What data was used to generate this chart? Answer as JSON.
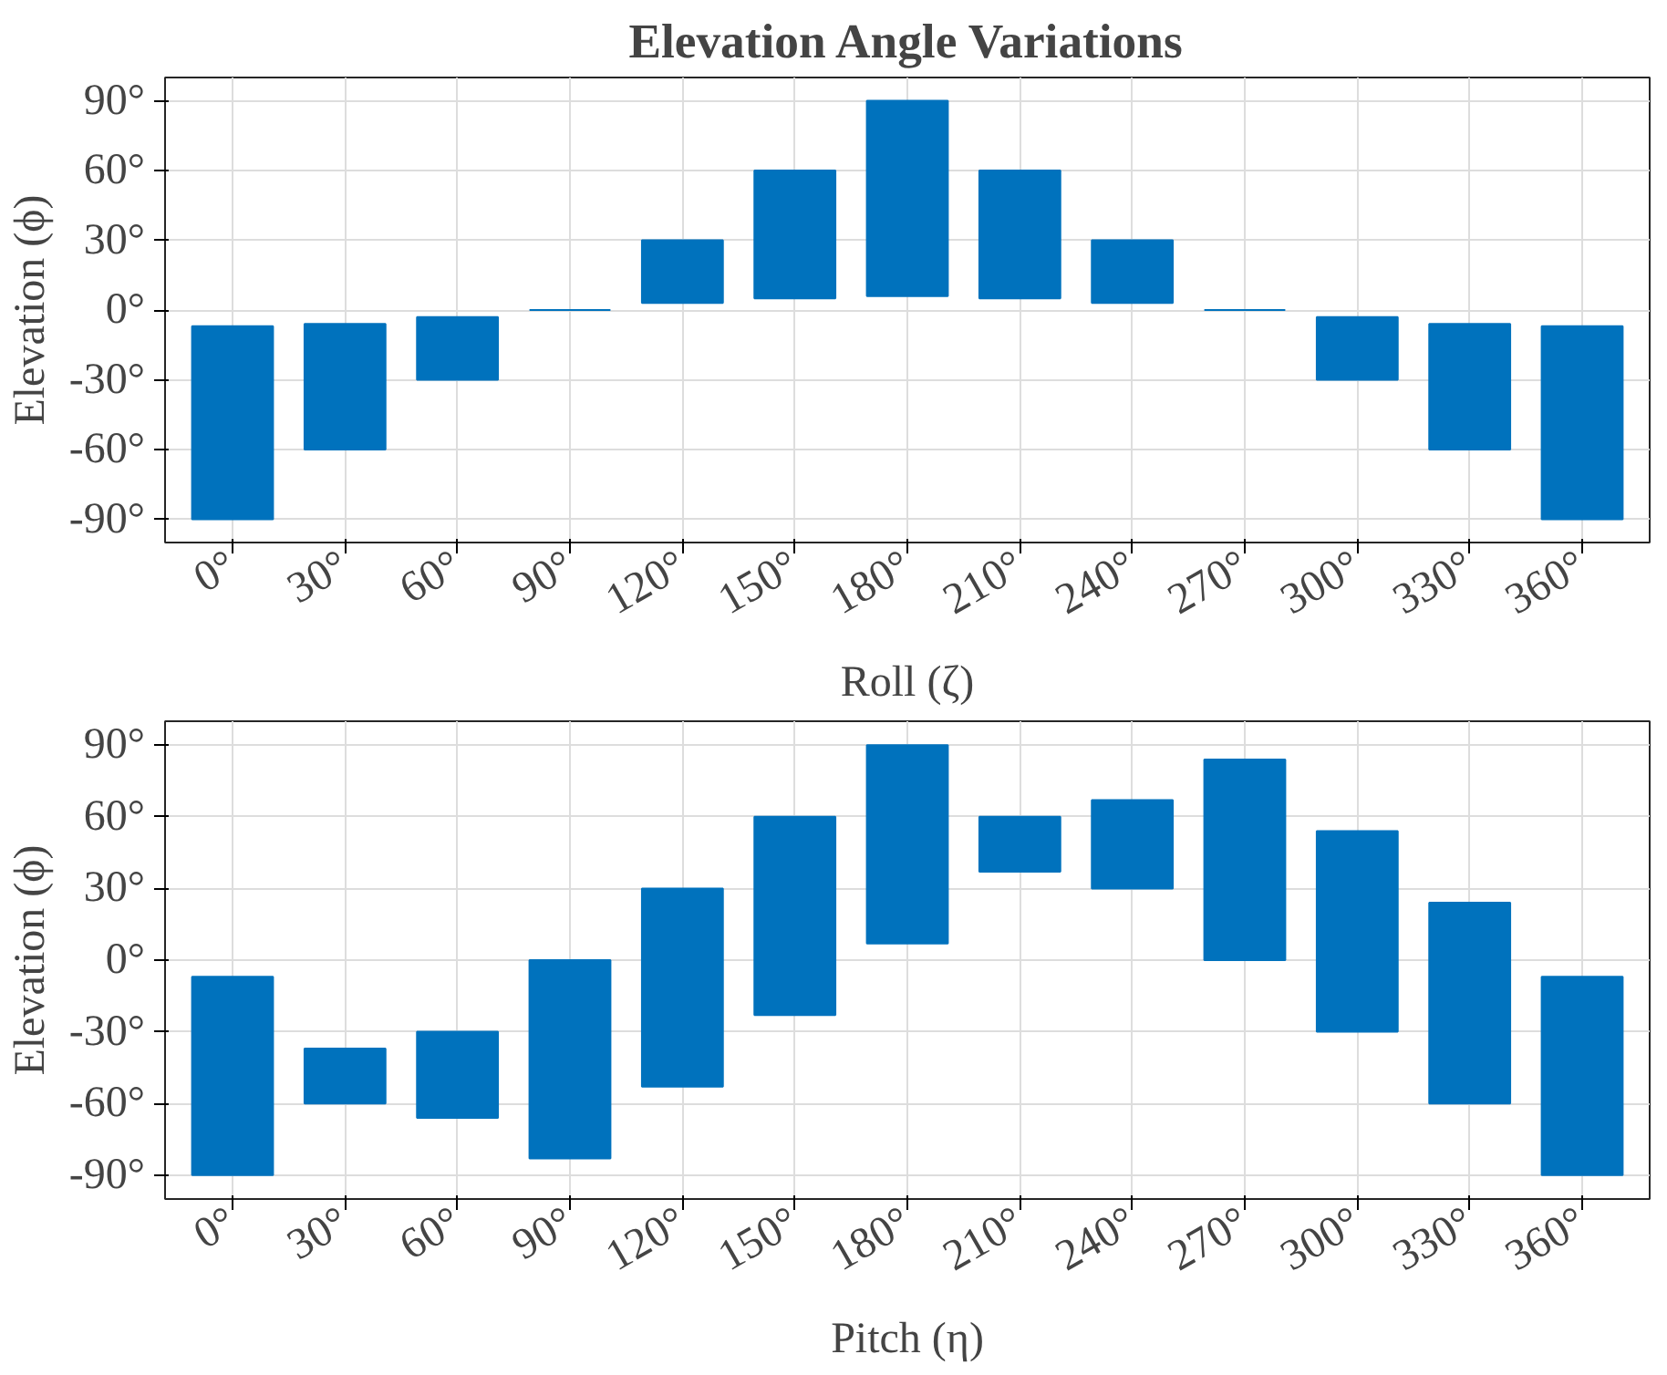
{
  "chart_data": [
    {
      "type": "bar",
      "title": "Elevation Angle Variations",
      "xlabel": "Roll (ζ)",
      "ylabel": "Elevation (ϕ)",
      "categories": [
        "0°",
        "30°",
        "60°",
        "90°",
        "120°",
        "150°",
        "180°",
        "210°",
        "240°",
        "270°",
        "300°",
        "330°",
        "360°"
      ],
      "series": [
        {
          "color": "#0072bd",
          "base": [
            -90,
            -60,
            -30,
            0,
            3,
            5,
            6,
            5,
            3,
            0,
            -30,
            -60,
            -90
          ],
          "values": [
            83,
            54,
            27,
            0,
            27,
            55,
            84,
            55,
            27,
            0,
            27,
            54,
            83
          ]
        }
      ],
      "ylim": [
        -100,
        100
      ],
      "yticks": [
        {
          "value": -90,
          "label": "-90°"
        },
        {
          "value": -60,
          "label": "-60°"
        },
        {
          "value": -30,
          "label": "-30°"
        },
        {
          "value": 0,
          "label": "0°"
        },
        {
          "value": 30,
          "label": "30°"
        },
        {
          "value": 60,
          "label": "60°"
        },
        {
          "value": 90,
          "label": "90°"
        }
      ],
      "grid": true
    },
    {
      "type": "bar",
      "xlabel": "Pitch (η)",
      "ylabel": "Elevation (ϕ)",
      "categories": [
        "0°",
        "30°",
        "60°",
        "90°",
        "120°",
        "150°",
        "180°",
        "210°",
        "240°",
        "270°",
        "300°",
        "330°",
        "360°"
      ],
      "series": [
        {
          "color": "#0072bd",
          "base": [
            -90,
            -60,
            -66,
            -83,
            -53,
            -23,
            7,
            37,
            30,
            0,
            -30,
            -60,
            -90
          ],
          "values": [
            83,
            23,
            36,
            83,
            83,
            83,
            83,
            23,
            37,
            84,
            84,
            84,
            83
          ]
        }
      ],
      "ylim": [
        -100,
        100
      ],
      "yticks": [
        {
          "value": -90,
          "label": "-90°"
        },
        {
          "value": -60,
          "label": "-60°"
        },
        {
          "value": -30,
          "label": "-30°"
        },
        {
          "value": 0,
          "label": "0°"
        },
        {
          "value": 30,
          "label": "30°"
        },
        {
          "value": 60,
          "label": "60°"
        },
        {
          "value": 90,
          "label": "90°"
        }
      ],
      "grid": true
    }
  ]
}
